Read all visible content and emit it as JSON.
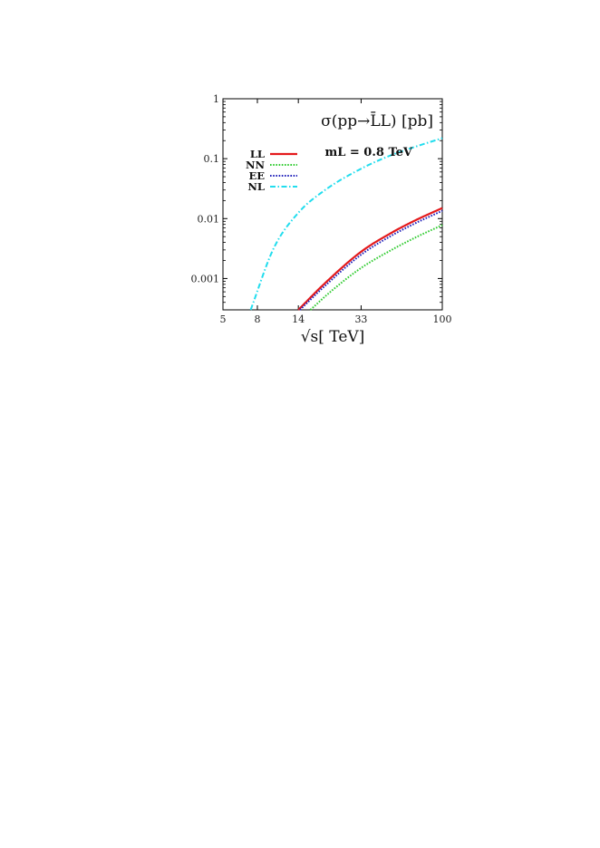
{
  "chart_data": {
    "type": "line",
    "title": "σ(pp→L̄L) [pb]",
    "subtitle": "mL = 0.8 TeV",
    "xlabel": "√s[ TeV]",
    "ylabel": "",
    "xscale": "log",
    "yscale": "log",
    "xlim": [
      5,
      100
    ],
    "ylim": [
      0.0003,
      1
    ],
    "grid": false,
    "legend_position": "top-left",
    "xticks": [
      {
        "value": 5,
        "label": "5"
      },
      {
        "value": 8,
        "label": "8"
      },
      {
        "value": 14,
        "label": "14"
      },
      {
        "value": 33,
        "label": "33"
      },
      {
        "value": 100,
        "label": "100"
      }
    ],
    "yticks": [
      {
        "value": 1,
        "label": "1"
      },
      {
        "value": 0.1,
        "label": "0.1"
      },
      {
        "value": 0.01,
        "label": "0.01"
      },
      {
        "value": 0.001,
        "label": "0.001"
      }
    ],
    "series": [
      {
        "name": "LL",
        "color": "#e41a1c",
        "style": "solid",
        "x": [
          14,
          20,
          33,
          50,
          70,
          100
        ],
        "y": [
          0.0003,
          0.00082,
          0.0028,
          0.0058,
          0.0095,
          0.015
        ]
      },
      {
        "name": "NN",
        "color": "#33cc33",
        "style": "dotted",
        "x": [
          16.5,
          22,
          33,
          50,
          70,
          100
        ],
        "y": [
          0.0003,
          0.00062,
          0.0015,
          0.003,
          0.0049,
          0.0078
        ]
      },
      {
        "name": "EE",
        "color": "#2222bb",
        "style": "dotted",
        "x": [
          14.3,
          20,
          33,
          50,
          70,
          100
        ],
        "y": [
          0.0003,
          0.00074,
          0.0025,
          0.0052,
          0.0085,
          0.0135
        ]
      },
      {
        "name": "NL",
        "color": "#22ddee",
        "style": "dashdot",
        "x": [
          7.3,
          10,
          14,
          20,
          33,
          50,
          70,
          100
        ],
        "y": [
          0.0003,
          0.0032,
          0.0125,
          0.0295,
          0.068,
          0.115,
          0.16,
          0.22
        ]
      }
    ]
  }
}
